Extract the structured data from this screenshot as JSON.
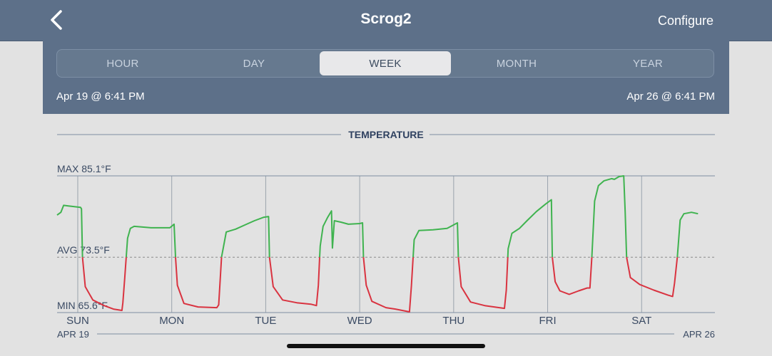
{
  "nav": {
    "title": "Scrog2",
    "configure_label": "Configure",
    "back_icon": "chevron-left-icon"
  },
  "ranges": {
    "tabs": [
      "HOUR",
      "DAY",
      "WEEK",
      "MONTH",
      "YEAR"
    ],
    "selected": "WEEK",
    "start": "Apr 19 @ 6:41 PM",
    "end": "Apr 26 @ 6:41 PM"
  },
  "colors": {
    "header_bg": "#5d7089",
    "above_avg": "#3fb34f",
    "below_avg": "#d93340"
  },
  "chart_data": {
    "type": "line",
    "title": "TEMPERATURE",
    "max_label": "MAX 85.1°F",
    "avg_label": "AVG 73.5°F",
    "min_label": "MIN 65.6°F",
    "max": 85.1,
    "avg": 73.5,
    "min": 65.6,
    "ylim": [
      65.6,
      85.1
    ],
    "xlim": [
      0,
      7
    ],
    "day_labels": [
      "SUN",
      "MON",
      "TUE",
      "WED",
      "THU",
      "FRI",
      "SAT"
    ],
    "day_positions": [
      0.22,
      1.22,
      2.22,
      3.22,
      4.22,
      5.22,
      6.22
    ],
    "start_label": "APR 19",
    "end_label": "APR 26",
    "series": [
      {
        "points": [
          [
            0.0,
            79.5
          ],
          [
            0.04,
            79.9
          ],
          [
            0.07,
            80.9
          ],
          [
            0.12,
            80.8
          ],
          [
            0.25,
            80.6
          ],
          [
            0.26,
            80.4
          ],
          [
            0.27,
            73.5
          ],
          [
            0.3,
            69.3
          ],
          [
            0.38,
            67.4
          ],
          [
            0.5,
            66.6
          ],
          [
            0.6,
            66.1
          ],
          [
            0.69,
            65.9
          ],
          [
            0.7,
            67.0
          ],
          [
            0.72,
            70.5
          ],
          [
            0.75,
            76.2
          ],
          [
            0.78,
            77.6
          ],
          [
            0.82,
            77.9
          ],
          [
            1.0,
            77.7
          ],
          [
            1.2,
            77.7
          ],
          [
            1.245,
            78.2
          ],
          [
            1.26,
            73.5
          ],
          [
            1.28,
            69.5
          ],
          [
            1.35,
            66.9
          ],
          [
            1.5,
            66.4
          ],
          [
            1.7,
            66.3
          ],
          [
            1.72,
            66.7
          ],
          [
            1.75,
            73.5
          ],
          [
            1.8,
            77.1
          ],
          [
            1.9,
            77.5
          ],
          [
            2.0,
            78.1
          ],
          [
            2.1,
            78.7
          ],
          [
            2.2,
            79.2
          ],
          [
            2.25,
            79.3
          ],
          [
            2.26,
            73.5
          ],
          [
            2.3,
            69.3
          ],
          [
            2.4,
            67.4
          ],
          [
            2.55,
            67.0
          ],
          [
            2.7,
            66.8
          ],
          [
            2.76,
            66.6
          ],
          [
            2.78,
            69.5
          ],
          [
            2.8,
            75.1
          ],
          [
            2.83,
            77.9
          ],
          [
            2.88,
            79.2
          ],
          [
            2.92,
            80.1
          ],
          [
            2.93,
            74.8
          ],
          [
            2.95,
            78.7
          ],
          [
            3.02,
            78.5
          ],
          [
            3.1,
            78.2
          ],
          [
            3.22,
            78.3
          ],
          [
            3.25,
            78.4
          ],
          [
            3.26,
            73.5
          ],
          [
            3.29,
            69.5
          ],
          [
            3.35,
            67.2
          ],
          [
            3.5,
            66.3
          ],
          [
            3.6,
            66.1
          ],
          [
            3.75,
            65.7
          ],
          [
            3.77,
            69.4
          ],
          [
            3.8,
            76.0
          ],
          [
            3.85,
            77.3
          ],
          [
            4.0,
            77.4
          ],
          [
            4.15,
            77.6
          ],
          [
            4.26,
            78.4
          ],
          [
            4.27,
            73.5
          ],
          [
            4.3,
            69.3
          ],
          [
            4.4,
            67.1
          ],
          [
            4.55,
            66.6
          ],
          [
            4.76,
            66.2
          ],
          [
            4.78,
            68.8
          ],
          [
            4.8,
            74.7
          ],
          [
            4.84,
            76.9
          ],
          [
            4.92,
            77.6
          ],
          [
            5.0,
            78.7
          ],
          [
            5.1,
            80.0
          ],
          [
            5.2,
            81.1
          ],
          [
            5.26,
            81.7
          ],
          [
            5.27,
            73.5
          ],
          [
            5.3,
            70.0
          ],
          [
            5.35,
            68.7
          ],
          [
            5.45,
            68.2
          ],
          [
            5.55,
            68.7
          ],
          [
            5.64,
            69.1
          ],
          [
            5.67,
            69.1
          ],
          [
            5.69,
            73.5
          ],
          [
            5.72,
            81.5
          ],
          [
            5.76,
            83.7
          ],
          [
            5.82,
            84.4
          ],
          [
            5.9,
            84.7
          ],
          [
            5.93,
            84.6
          ],
          [
            5.98,
            85.0
          ],
          [
            6.03,
            85.1
          ],
          [
            6.045,
            80.0
          ],
          [
            6.06,
            73.5
          ],
          [
            6.1,
            70.6
          ],
          [
            6.2,
            69.6
          ],
          [
            6.35,
            68.8
          ],
          [
            6.5,
            68.1
          ],
          [
            6.55,
            67.9
          ],
          [
            6.57,
            69.8
          ],
          [
            6.6,
            73.5
          ],
          [
            6.63,
            78.8
          ],
          [
            6.67,
            79.7
          ],
          [
            6.75,
            79.9
          ],
          [
            6.82,
            79.7
          ]
        ]
      }
    ]
  }
}
